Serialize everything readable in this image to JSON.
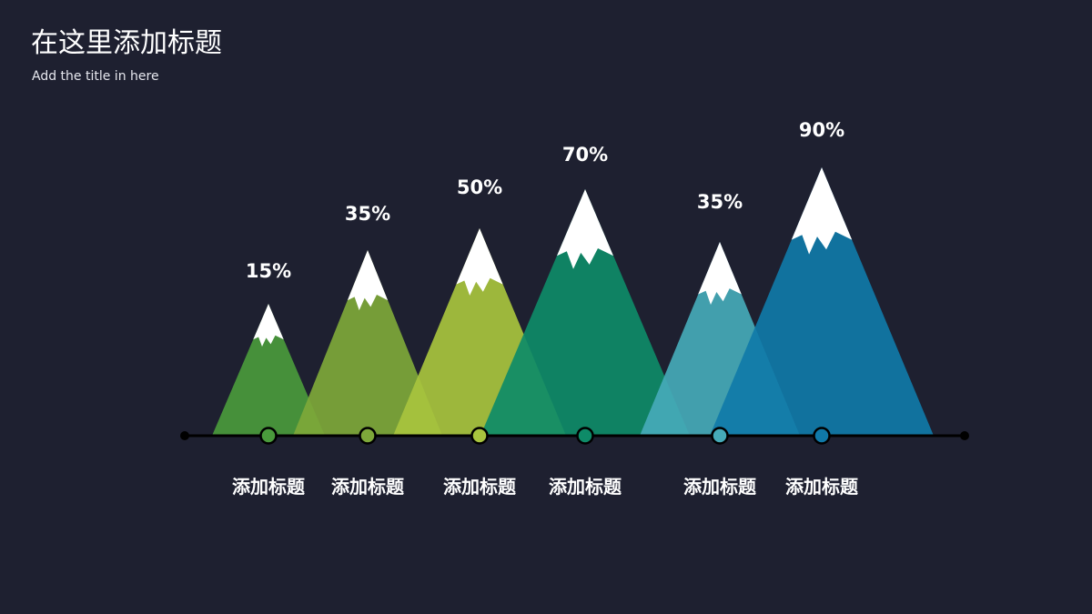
{
  "header": {
    "title": "在这里添加标题",
    "subtitle": "Add the title in here"
  },
  "chart_data": {
    "type": "bar",
    "style": "mountain",
    "categories": [
      "添加标题",
      "添加标题",
      "添加标题",
      "添加标题",
      "添加标题",
      "添加标题"
    ],
    "values": [
      15,
      35,
      50,
      70,
      35,
      90
    ],
    "value_labels": [
      "15%",
      "35%",
      "50%",
      "70%",
      "35%",
      "90%"
    ],
    "ylim": [
      0,
      100
    ],
    "colors": [
      "#4a9a3c",
      "#7ea83a",
      "#a8c43e",
      "#0e8b68",
      "#45aab8",
      "#1079a8"
    ],
    "baseline_color": "#000000",
    "snow_color": "#ffffff",
    "grid": false,
    "legend": "none"
  }
}
